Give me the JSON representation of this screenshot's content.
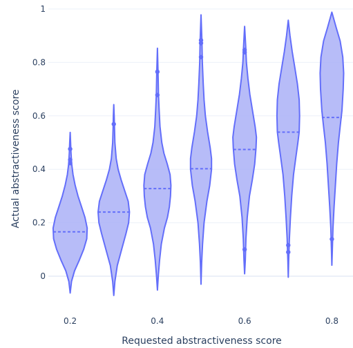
{
  "chart_data": {
    "type": "violin",
    "xlabel": "Requested abstractiveness score",
    "ylabel": "Actual abstractiveness score",
    "categories": [
      "0.2",
      "0.3",
      "0.4",
      "0.5",
      "0.6",
      "0.7",
      "0.8"
    ],
    "x_tick_labels": [
      "0.2",
      "0.4",
      "0.6",
      "0.8"
    ],
    "y_tick_labels": [
      "0",
      "0.2",
      "0.4",
      "0.6",
      "0.8",
      "1"
    ],
    "y_ticks": [
      0,
      0.2,
      0.4,
      0.6,
      0.8,
      1
    ],
    "ylim": [
      -0.085,
      1.03
    ],
    "grid": true,
    "colors": {
      "fill": "#aab0f7",
      "line": "#636efa",
      "grid": "#ebf0f8",
      "text": "#2a3f5f"
    },
    "series": [
      {
        "x": "0.2",
        "median": 0.166,
        "min": -0.063,
        "max": 0.538,
        "outliers": [
          0.476,
          0.436,
          0.423
        ],
        "profile": [
          [
            -0.063,
            0
          ],
          [
            -0.02,
            0.06
          ],
          [
            0.02,
            0.2
          ],
          [
            0.06,
            0.42
          ],
          [
            0.1,
            0.62
          ],
          [
            0.14,
            0.76
          ],
          [
            0.18,
            0.78
          ],
          [
            0.22,
            0.68
          ],
          [
            0.26,
            0.52
          ],
          [
            0.3,
            0.36
          ],
          [
            0.34,
            0.23
          ],
          [
            0.38,
            0.13
          ],
          [
            0.42,
            0.07
          ],
          [
            0.46,
            0.04
          ],
          [
            0.5,
            0.02
          ],
          [
            0.538,
            0
          ]
        ]
      },
      {
        "x": "0.3",
        "median": 0.24,
        "min": -0.072,
        "max": 0.642,
        "outliers": [
          0.569
        ],
        "profile": [
          [
            -0.072,
            0
          ],
          [
            -0.02,
            0.05
          ],
          [
            0.04,
            0.16
          ],
          [
            0.1,
            0.36
          ],
          [
            0.16,
            0.56
          ],
          [
            0.2,
            0.68
          ],
          [
            0.24,
            0.72
          ],
          [
            0.28,
            0.66
          ],
          [
            0.32,
            0.5
          ],
          [
            0.36,
            0.34
          ],
          [
            0.4,
            0.2
          ],
          [
            0.44,
            0.11
          ],
          [
            0.5,
            0.05
          ],
          [
            0.56,
            0.03
          ],
          [
            0.6,
            0.02
          ],
          [
            0.642,
            0
          ]
        ]
      },
      {
        "x": "0.4",
        "median": 0.328,
        "min": -0.052,
        "max": 0.853,
        "outliers": [
          0.765,
          0.678
        ],
        "profile": [
          [
            -0.052,
            0
          ],
          [
            0.0,
            0.04
          ],
          [
            0.06,
            0.1
          ],
          [
            0.12,
            0.18
          ],
          [
            0.18,
            0.32
          ],
          [
            0.22,
            0.46
          ],
          [
            0.26,
            0.55
          ],
          [
            0.3,
            0.6
          ],
          [
            0.34,
            0.62
          ],
          [
            0.38,
            0.58
          ],
          [
            0.42,
            0.45
          ],
          [
            0.46,
            0.3
          ],
          [
            0.5,
            0.2
          ],
          [
            0.56,
            0.12
          ],
          [
            0.62,
            0.08
          ],
          [
            0.68,
            0.05
          ],
          [
            0.76,
            0.03
          ],
          [
            0.853,
            0
          ]
        ]
      },
      {
        "x": "0.5",
        "median": 0.402,
        "min": -0.03,
        "max": 0.978,
        "outliers": [
          0.883,
          0.872,
          0.82
        ],
        "profile": [
          [
            -0.03,
            0
          ],
          [
            0.05,
            0.03
          ],
          [
            0.12,
            0.07
          ],
          [
            0.2,
            0.14
          ],
          [
            0.28,
            0.27
          ],
          [
            0.34,
            0.4
          ],
          [
            0.4,
            0.48
          ],
          [
            0.44,
            0.48
          ],
          [
            0.48,
            0.42
          ],
          [
            0.54,
            0.3
          ],
          [
            0.6,
            0.2
          ],
          [
            0.66,
            0.14
          ],
          [
            0.72,
            0.1
          ],
          [
            0.8,
            0.06
          ],
          [
            0.88,
            0.04
          ],
          [
            0.978,
            0
          ]
        ]
      },
      {
        "x": "0.6",
        "median": 0.474,
        "min": 0.009,
        "max": 0.935,
        "outliers": [
          0.847,
          0.838,
          0.1
        ],
        "profile": [
          [
            0.009,
            0
          ],
          [
            0.06,
            0.03
          ],
          [
            0.14,
            0.06
          ],
          [
            0.22,
            0.12
          ],
          [
            0.3,
            0.22
          ],
          [
            0.36,
            0.35
          ],
          [
            0.42,
            0.46
          ],
          [
            0.48,
            0.52
          ],
          [
            0.52,
            0.54
          ],
          [
            0.56,
            0.48
          ],
          [
            0.62,
            0.36
          ],
          [
            0.68,
            0.24
          ],
          [
            0.74,
            0.15
          ],
          [
            0.8,
            0.08
          ],
          [
            0.86,
            0.05
          ],
          [
            0.935,
            0
          ]
        ]
      },
      {
        "x": "0.7",
        "median": 0.539,
        "min": -0.004,
        "max": 0.958,
        "outliers": [
          0.116,
          0.09
        ],
        "profile": [
          [
            -0.004,
            0
          ],
          [
            0.06,
            0.02
          ],
          [
            0.14,
            0.05
          ],
          [
            0.22,
            0.1
          ],
          [
            0.3,
            0.16
          ],
          [
            0.38,
            0.24
          ],
          [
            0.44,
            0.34
          ],
          [
            0.5,
            0.44
          ],
          [
            0.54,
            0.5
          ],
          [
            0.6,
            0.52
          ],
          [
            0.66,
            0.5
          ],
          [
            0.72,
            0.42
          ],
          [
            0.78,
            0.3
          ],
          [
            0.84,
            0.18
          ],
          [
            0.9,
            0.08
          ],
          [
            0.958,
            0
          ]
        ]
      },
      {
        "x": "0.8",
        "median": 0.594,
        "min": 0.041,
        "max": 0.988,
        "outliers": [
          0.139
        ],
        "profile": [
          [
            0.041,
            0
          ],
          [
            0.1,
            0.02
          ],
          [
            0.18,
            0.05
          ],
          [
            0.26,
            0.1
          ],
          [
            0.34,
            0.16
          ],
          [
            0.42,
            0.22
          ],
          [
            0.5,
            0.3
          ],
          [
            0.56,
            0.38
          ],
          [
            0.62,
            0.46
          ],
          [
            0.7,
            0.52
          ],
          [
            0.76,
            0.54
          ],
          [
            0.82,
            0.5
          ],
          [
            0.88,
            0.38
          ],
          [
            0.93,
            0.2
          ],
          [
            0.988,
            0
          ]
        ]
      }
    ]
  }
}
